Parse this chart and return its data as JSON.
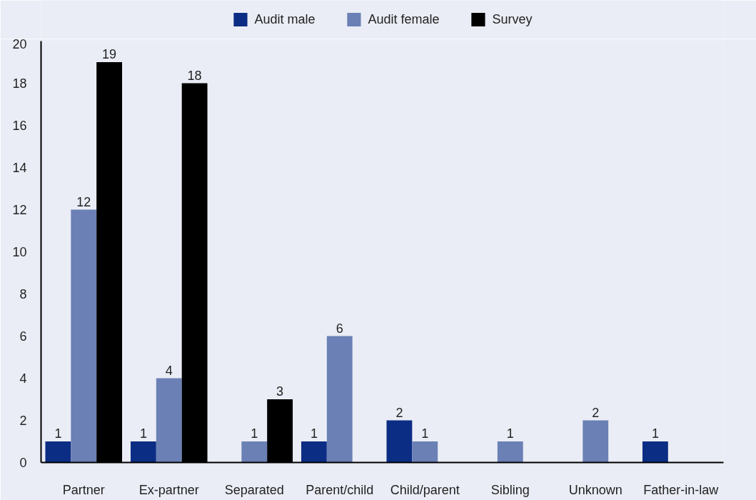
{
  "chart_data": {
    "type": "bar",
    "categories": [
      "Partner",
      "Ex-partner",
      "Separated",
      "Parent/child",
      "Child/parent",
      "Sibling",
      "Unknown",
      "Father-in-law"
    ],
    "series": [
      {
        "name": "Audit male",
        "color": "#0b2d84",
        "values": [
          1,
          1,
          null,
          1,
          2,
          null,
          null,
          1
        ]
      },
      {
        "name": "Audit female",
        "color": "#6b80b5",
        "values": [
          12,
          4,
          1,
          6,
          1,
          1,
          2,
          null
        ]
      },
      {
        "name": "Survey",
        "color": "#000000",
        "values": [
          19,
          18,
          3,
          null,
          null,
          null,
          null,
          null
        ]
      }
    ],
    "ylim": [
      0,
      20
    ],
    "yticks": [
      0,
      2,
      4,
      6,
      8,
      10,
      12,
      14,
      16,
      18,
      20
    ],
    "data_labels": true,
    "legend": "top",
    "grid": false
  }
}
